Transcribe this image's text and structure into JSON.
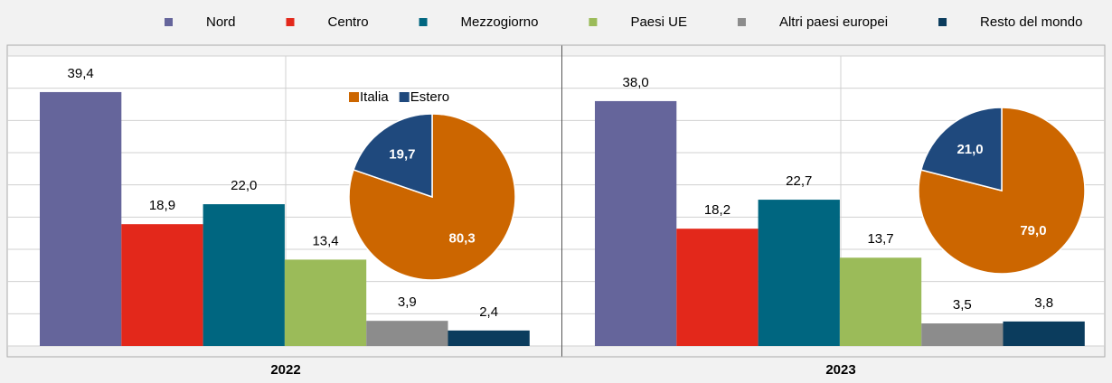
{
  "chart_data": [
    {
      "type": "bar",
      "categories": [
        "2022",
        "2023"
      ],
      "series": [
        {
          "name": "Nord",
          "color": "#65659b",
          "values": [
            39.4,
            38.0
          ],
          "value_labels": [
            "39,4",
            "38,0"
          ]
        },
        {
          "name": "Centro",
          "color": "#e3281b",
          "values": [
            18.9,
            18.2
          ],
          "value_labels": [
            "18,9",
            "18,2"
          ]
        },
        {
          "name": "Mezzogiorno",
          "color": "#006680",
          "values": [
            22.0,
            22.7
          ],
          "value_labels": [
            "22,0",
            "22,7"
          ]
        },
        {
          "name": "Paesi UE",
          "color": "#9bbb59",
          "values": [
            13.4,
            13.7
          ],
          "value_labels": [
            "13,4",
            "13,7"
          ]
        },
        {
          "name": "Altri paesi europei",
          "color": "#8c8c8c",
          "values": [
            3.9,
            3.5
          ],
          "value_labels": [
            "3,9",
            "3,5"
          ]
        },
        {
          "name": "Resto del mondo",
          "color": "#0b3c5d",
          "values": [
            2.4,
            3.8
          ],
          "value_labels": [
            "2,4",
            "3,8"
          ]
        }
      ],
      "ylim": [
        0,
        45
      ],
      "yticks": [
        0,
        5,
        10,
        15,
        20,
        25,
        30,
        35,
        40,
        45
      ],
      "grid": true
    },
    {
      "type": "pie",
      "categories": [
        "Italia",
        "Estero"
      ],
      "colors": [
        "#cc6600",
        "#1f497d"
      ],
      "series": [
        {
          "values": [
            80.3,
            19.7
          ],
          "value_labels": [
            "80,3",
            "19,7"
          ]
        },
        {
          "values": [
            79.0,
            21.0
          ],
          "value_labels": [
            "79,0",
            "21,0"
          ]
        }
      ]
    }
  ]
}
